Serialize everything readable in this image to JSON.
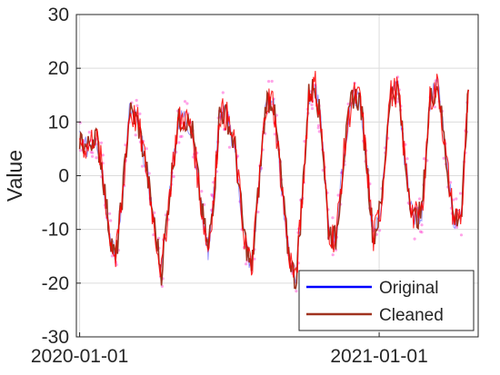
{
  "chart_data": {
    "type": "line",
    "title": "",
    "xlabel": "",
    "ylabel": "Value",
    "xlim": [
      "2019-12-28",
      "2021-05-02"
    ],
    "ylim": [
      -30,
      30
    ],
    "x_tick_labels": [
      "2020-01-01",
      "2021-01-01"
    ],
    "y_ticks": [
      -30,
      -20,
      -10,
      0,
      10,
      20,
      30
    ],
    "y_tick_labels": [
      "-30",
      "-20",
      "-10",
      "0",
      "10",
      "20",
      "30"
    ],
    "grid": "major",
    "legend_placement": "bottom-right",
    "x_dates": [
      "2020-01-01",
      "2020-01-10",
      "2020-01-20",
      "2020-01-28",
      "2020-02-06",
      "2020-02-14",
      "2020-02-22",
      "2020-03-02",
      "2020-03-12",
      "2020-03-22",
      "2020-03-31",
      "2020-04-10",
      "2020-04-20",
      "2020-04-30",
      "2020-05-08",
      "2020-05-18",
      "2020-05-28",
      "2020-06-06",
      "2020-06-14",
      "2020-06-20",
      "2020-06-29",
      "2020-07-09",
      "2020-07-19",
      "2020-07-29",
      "2020-08-07",
      "2020-08-16",
      "2020-08-24",
      "2020-09-01",
      "2020-09-11",
      "2020-09-21",
      "2020-09-29",
      "2020-10-07",
      "2020-10-15",
      "2020-10-23",
      "2020-10-31",
      "2020-11-09",
      "2020-11-19",
      "2020-11-29",
      "2020-12-09",
      "2020-12-17",
      "2020-12-25",
      "2021-01-04",
      "2021-01-14",
      "2021-01-24",
      "2021-02-02",
      "2021-02-12",
      "2021-02-22",
      "2021-03-04",
      "2021-03-14",
      "2021-03-24",
      "2021-04-02",
      "2021-04-12",
      "2021-04-20"
    ],
    "series": [
      {
        "name": "Original",
        "color": "#0000ff",
        "values": [
          7,
          5,
          8,
          2,
          -10,
          -16,
          -4,
          12,
          10,
          2,
          -8,
          -18,
          -3,
          10,
          11,
          8,
          -5,
          -14,
          -2,
          12,
          11,
          5,
          -10,
          -18,
          -2,
          14,
          14,
          3,
          -13,
          -20,
          -4,
          15,
          17,
          8,
          -10,
          -12,
          4,
          15,
          14,
          2,
          -12,
          -5,
          15,
          16,
          2,
          -8,
          -7,
          14,
          17,
          3,
          -8,
          -7,
          16
        ]
      },
      {
        "name": "Cleaned",
        "color": "#a0331f",
        "values": [
          7,
          5,
          8,
          2,
          -10,
          -16,
          -4,
          12,
          10,
          2,
          -8,
          -18,
          -3,
          10,
          11,
          8,
          -5,
          -14,
          -2,
          12,
          11,
          5,
          -10,
          -18,
          -2,
          14,
          14,
          3,
          -13,
          -20,
          -4,
          15,
          17,
          8,
          -10,
          -12,
          4,
          15,
          14,
          2,
          -12,
          -5,
          15,
          16,
          2,
          -8,
          -7,
          14,
          17,
          3,
          -8,
          -7,
          16
        ]
      }
    ],
    "outlier_color": "#ff33cc",
    "highlight_color": "#ff0000"
  }
}
